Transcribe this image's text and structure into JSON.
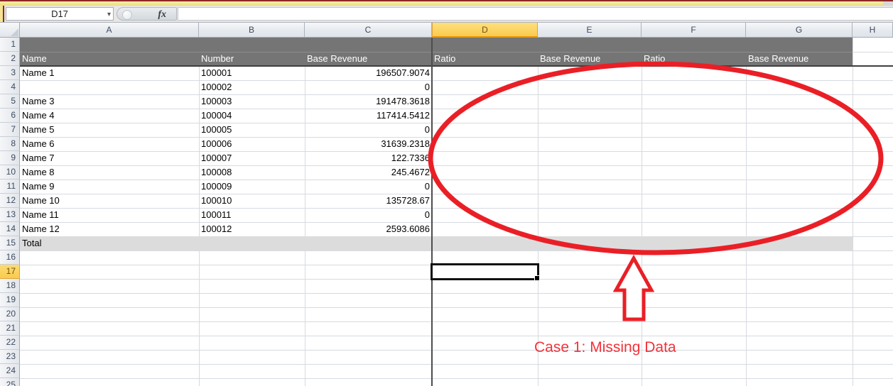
{
  "chrome": {
    "name_box": "D17",
    "fx_label": "fx",
    "formula_bar_value": ""
  },
  "sheet": {
    "column_letters": [
      "A",
      "B",
      "C",
      "D",
      "E",
      "F",
      "G",
      "H"
    ],
    "row_numbers": [
      "1",
      "2",
      "3",
      "4",
      "5",
      "6",
      "7",
      "8",
      "9",
      "10",
      "11",
      "12",
      "13",
      "14",
      "15",
      "16",
      "17",
      "18",
      "19",
      "20",
      "21",
      "22",
      "23",
      "24",
      "25"
    ],
    "selection": {
      "cell": "D17",
      "column": "D",
      "row": 17
    },
    "header_row": [
      {
        "col": "A",
        "label": "Name"
      },
      {
        "col": "B",
        "label": "Number"
      },
      {
        "col": "C",
        "label": "Base Revenue"
      },
      {
        "col": "D",
        "label": "Ratio"
      },
      {
        "col": "E",
        "label": "Base Revenue"
      },
      {
        "col": "F",
        "label": "Ratio"
      },
      {
        "col": "G",
        "label": "Base Revenue"
      }
    ],
    "rows": [
      {
        "row": 3,
        "name": "Name 1",
        "number": "100001",
        "base_revenue": "196507.9074"
      },
      {
        "row": 4,
        "name": "",
        "number": "100002",
        "base_revenue": "0"
      },
      {
        "row": 5,
        "name": "Name 3",
        "number": "100003",
        "base_revenue": "191478.3618"
      },
      {
        "row": 6,
        "name": "Name 4",
        "number": "100004",
        "base_revenue": "117414.5412"
      },
      {
        "row": 7,
        "name": "Name 5",
        "number": "100005",
        "base_revenue": "0"
      },
      {
        "row": 8,
        "name": "Name 6",
        "number": "100006",
        "base_revenue": "31639.2318"
      },
      {
        "row": 9,
        "name": "Name 7",
        "number": "100007",
        "base_revenue": "122.7336"
      },
      {
        "row": 10,
        "name": "Name 8",
        "number": "100008",
        "base_revenue": "245.4672"
      },
      {
        "row": 11,
        "name": "Name 9",
        "number": "100009",
        "base_revenue": "0"
      },
      {
        "row": 12,
        "name": "Name 10",
        "number": "100010",
        "base_revenue": "135728.67"
      },
      {
        "row": 13,
        "name": "Name 11",
        "number": "100011",
        "base_revenue": "0"
      },
      {
        "row": 14,
        "name": "Name 12",
        "number": "100012",
        "base_revenue": "2593.6086"
      }
    ],
    "total_row": {
      "row": 15,
      "label": "Total"
    }
  },
  "annotations": {
    "callout_text": "Case 1: Missing Data",
    "shape_color": "#ea1f26",
    "text_color": "#f2333a"
  },
  "colors": {
    "table_header_fill": "#757575",
    "table_header_text": "#ffffff",
    "total_row_fill": "#dcdcdc",
    "selected_header_fill": "#fbcf57"
  }
}
